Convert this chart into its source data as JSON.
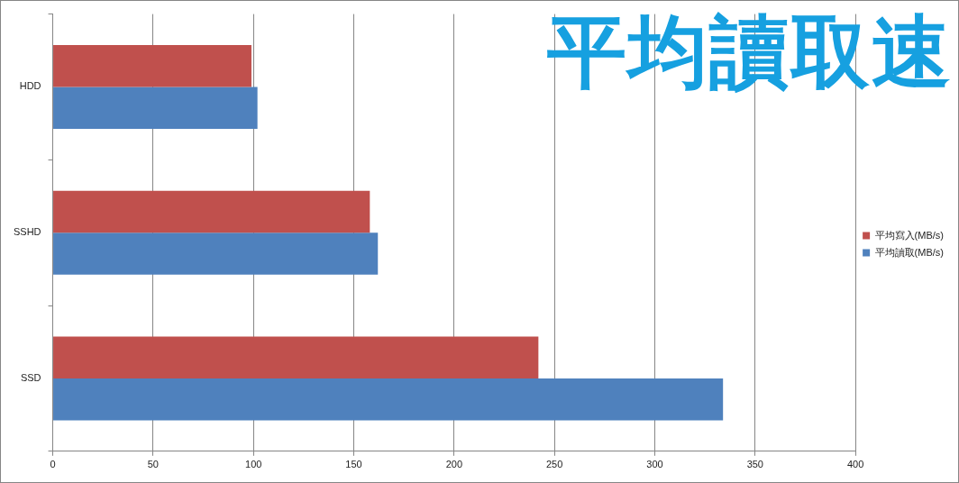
{
  "chart_data": {
    "type": "bar",
    "orientation": "horizontal",
    "title": "平均讀取速",
    "categories": [
      "HDD",
      "SSHD",
      "SSD"
    ],
    "series": [
      {
        "name": "平均寫入(MB/s)",
        "color": "#c0504d",
        "values": [
          99,
          158,
          242
        ]
      },
      {
        "name": "平均讀取(MB/s)",
        "color": "#4f81bd",
        "values": [
          102,
          162,
          334
        ]
      }
    ],
    "xlim": [
      0,
      400
    ],
    "xticks": [
      0,
      50,
      100,
      150,
      200,
      250,
      300,
      350,
      400
    ],
    "grid": "x",
    "legend": "right"
  }
}
